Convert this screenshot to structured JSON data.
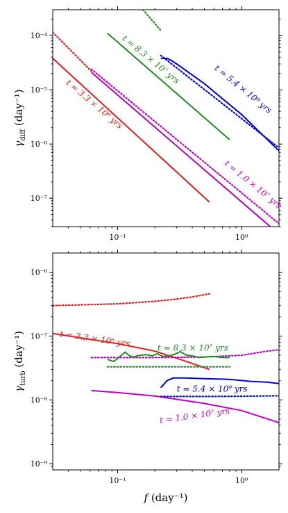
{
  "chart_data": [
    {
      "type": "line",
      "ylabel": "γ_diff (day⁻¹)",
      "ylabel_main": "γ",
      "ylabel_sub": "diff",
      "ylabel_unit": "(day⁻¹)",
      "x_scale": "log",
      "y_scale": "log",
      "xlim": [
        0.03,
        2.0
      ],
      "ylim": [
        3e-08,
        0.0003
      ],
      "x_ticks": [
        {
          "value": 0.1,
          "label": "10⁻¹"
        },
        {
          "value": 1,
          "label": "10⁰"
        }
      ],
      "y_ticks": [
        {
          "value": 1e-07,
          "label": "10⁻⁷"
        },
        {
          "value": 1e-06,
          "label": "10⁻⁶"
        },
        {
          "value": 1e-05,
          "label": "10⁻⁵"
        },
        {
          "value": 0.0001,
          "label": "10⁻⁴"
        }
      ],
      "series": [
        {
          "color": "#e41a1c",
          "style": "solid",
          "x": [
            0.03,
            0.55
          ],
          "y": [
            3.8e-05,
            8.5e-08
          ]
        },
        {
          "color": "#e41a1c",
          "style": "dotted",
          "x": [
            0.03,
            0.0615
          ],
          "y": [
            0.000115,
            2.2e-05
          ]
        },
        {
          "color": "#bf00bf",
          "style": "solid",
          "x": [
            0.0615,
            1.7
          ],
          "y": [
            2.1e-05,
            3e-08
          ]
        },
        {
          "color": "#bf00bf",
          "style": "dotted",
          "x": [
            0.0615,
            2.0
          ],
          "y": [
            2.4e-05,
            3.4e-08
          ]
        },
        {
          "color": "#228b22",
          "style": "solid",
          "x": [
            0.083,
            0.8
          ],
          "y": [
            0.00011,
            1.2e-06
          ]
        },
        {
          "color": "#228b22",
          "style": "dotted",
          "x": [
            0.16,
            0.223
          ],
          "y": [
            0.0003,
            0.000125
          ]
        },
        {
          "color": "#0000dd",
          "style": "solid",
          "x": [
            0.223,
            0.25,
            0.27,
            0.3,
            0.5,
            1.0,
            2.0
          ],
          "y": [
            3.8e-05,
            3.8e-05,
            3.5e-05,
            3e-05,
            1.3e-05,
            3.5e-06,
            7.5e-07
          ]
        },
        {
          "color": "#0000dd",
          "style": "dotted",
          "x": [
            0.223,
            2.0
          ],
          "y": [
            4.3e-05,
            8.5e-07
          ]
        }
      ],
      "annotations": [
        {
          "text": "t = 3.3 × 10⁶ yrs",
          "color": "#e41a1c",
          "x": 0.038,
          "y": 1.3e-05,
          "angle": 40
        },
        {
          "text": "t = 8.3 × 10⁷ yrs",
          "color": "#228b22",
          "x": 0.108,
          "y": 8.5e-05,
          "angle": 39
        },
        {
          "text": "t = 5.4 × 10⁹ yrs",
          "color": "#0000dd",
          "x": 0.6,
          "y": 2.4e-05,
          "angle": 39
        },
        {
          "text": "t = 1.0 × 10⁷ yrs",
          "color": "#bf00bf",
          "x": 0.72,
          "y": 4.2e-07,
          "angle": 39
        }
      ]
    },
    {
      "type": "line",
      "xlabel": "f (day⁻¹)",
      "xlabel_main": "f",
      "xlabel_unit": "(day⁻¹)",
      "ylabel": "γ_turb (day⁻¹)",
      "ylabel_main": "γ",
      "ylabel_sub": "turb",
      "ylabel_unit": "(day⁻¹)",
      "x_scale": "log",
      "y_scale": "log",
      "xlim": [
        0.03,
        2.0
      ],
      "ylim": [
        8e-10,
        2e-06
      ],
      "x_ticks": [
        {
          "value": 0.1,
          "label": "10⁻¹"
        },
        {
          "value": 1,
          "label": "10⁰"
        }
      ],
      "y_ticks": [
        {
          "value": 1e-09,
          "label": "10⁻⁹"
        },
        {
          "value": 1e-08,
          "label": "10⁻⁸"
        },
        {
          "value": 1e-07,
          "label": "10⁻⁷"
        },
        {
          "value": 1e-06,
          "label": "10⁻⁶"
        }
      ],
      "series": [
        {
          "color": "#e41a1c",
          "style": "solid",
          "x": [
            0.03,
            0.1,
            0.2,
            0.3,
            0.55
          ],
          "y": [
            1.1e-07,
            7.6e-08,
            5.8e-08,
            4.5e-08,
            3e-08
          ]
        },
        {
          "color": "#e41a1c",
          "style": "dotted",
          "x": [
            0.03,
            0.1,
            0.2,
            0.3,
            0.4,
            0.55
          ],
          "y": [
            3e-07,
            3.2e-07,
            3.5e-07,
            3.8e-07,
            4.1e-07,
            4.6e-07
          ]
        },
        {
          "color": "#bf00bf",
          "style": "solid",
          "x": [
            0.0615,
            0.1,
            0.2,
            0.5,
            1.0,
            2.0
          ],
          "y": [
            1.4e-08,
            1.3e-08,
            1.15e-08,
            8.8e-09,
            6.8e-09,
            4.4e-09
          ]
        },
        {
          "color": "#bf00bf",
          "style": "dotted",
          "x": [
            0.0615,
            0.2,
            0.5,
            1.0,
            1.6,
            2.0
          ],
          "y": [
            4.6e-08,
            4.6e-08,
            4.7e-08,
            5e-08,
            5.8e-08,
            6.1e-08
          ]
        },
        {
          "color": "#228b22",
          "style": "solid",
          "x": [
            0.083,
            0.093,
            0.105,
            0.115,
            0.125,
            0.135,
            0.15,
            0.17,
            0.19,
            0.21,
            0.23,
            0.26,
            0.29,
            0.32,
            0.36,
            0.4,
            0.45,
            0.5,
            0.6,
            0.7,
            0.8
          ],
          "y": [
            4.3e-08,
            4e-08,
            4.8e-08,
            5.6e-08,
            4.9e-08,
            4.7e-08,
            5e-08,
            5.1e-08,
            4.9e-08,
            5.3e-08,
            4.8e-08,
            4.9e-08,
            5.2e-08,
            5.7e-08,
            5e-08,
            4.9e-08,
            4.6e-08,
            4.7e-08,
            4.8e-08,
            4.6e-08,
            4.6e-08
          ]
        },
        {
          "color": "#228b22",
          "style": "dotted",
          "x": [
            0.083,
            0.8
          ],
          "y": [
            3.3e-08,
            3.3e-08
          ]
        },
        {
          "color": "#0000dd",
          "style": "solid",
          "x": [
            0.223,
            0.25,
            0.28,
            0.35,
            0.5,
            0.8,
            1.2,
            1.6,
            2.0
          ],
          "y": [
            1.55e-08,
            2e-08,
            2.2e-08,
            2.2e-08,
            2.15e-08,
            2.1e-08,
            1.95e-08,
            1.9e-08,
            1.8e-08
          ]
        },
        {
          "color": "#0000dd",
          "style": "dotted",
          "x": [
            0.223,
            0.5,
            1.0,
            2.0
          ],
          "y": [
            1.13e-08,
            1.13e-08,
            1.14e-08,
            1.16e-08
          ]
        }
      ],
      "annotations": [
        {
          "text": "t = 3.3 × 10⁶ yrs",
          "color": "#e41a1c",
          "x": 0.034,
          "y": 9.8e-08,
          "angle": 8
        },
        {
          "text": "t = 8.3 × 10⁷ yrs",
          "color": "#228b22",
          "x": 0.21,
          "y": 5.9e-08,
          "angle": 0
        },
        {
          "text": "t = 5.4 × 10⁹ yrs",
          "color": "#0000dd",
          "x": 0.3,
          "y": 1.35e-08,
          "angle": 0
        },
        {
          "text": "t = 1.0 × 10⁷ yrs",
          "color": "#bf00bf",
          "x": 0.22,
          "y": 4.3e-09,
          "angle": -8
        }
      ]
    }
  ]
}
